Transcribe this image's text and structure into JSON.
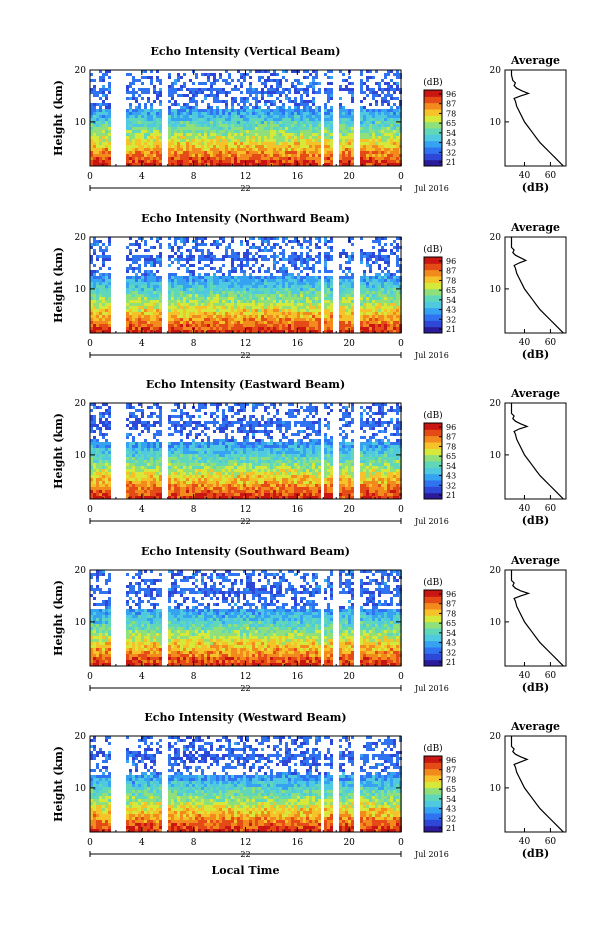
{
  "chart_data": [
    {
      "type": "heatmap",
      "title": "Echo Intensity (Vertical Beam)",
      "ylabel": "Height (km)",
      "xticks": [
        "0",
        "4",
        "8",
        "12",
        "16",
        "20",
        "0"
      ],
      "yticks": [
        "20",
        "10"
      ],
      "date_label": "22",
      "month_label": "Jul 2016",
      "xlim": [
        0,
        24
      ],
      "ylim": [
        1.5,
        20
      ],
      "gaps_hours": [
        [
          1.4,
          2.6
        ],
        [
          5.4,
          5.9
        ],
        [
          17.7,
          18.0
        ],
        [
          18.6,
          19.0
        ],
        [
          20.3,
          20.8
        ]
      ],
      "colorbar": {
        "unit": "(dB)",
        "ticks": [
          "96",
          "87",
          "78",
          "65",
          "54",
          "43",
          "32",
          "21"
        ]
      },
      "profile": {
        "title": "Average",
        "xlabel": "(dB)",
        "xticks": [
          "40",
          "60"
        ],
        "yticks": [
          "20",
          "10"
        ],
        "xlim": [
          25,
          72
        ],
        "height_km": [
          1.5,
          2,
          3,
          4,
          5,
          6,
          7,
          8,
          9,
          10,
          11,
          12,
          13,
          14,
          14.5,
          15,
          15.5,
          16,
          16.5,
          17,
          17.5,
          18,
          19,
          20
        ],
        "db": [
          70,
          68,
          64,
          60,
          56,
          52,
          49,
          46,
          43,
          40,
          38,
          36,
          34,
          33,
          32,
          37,
          43,
          38,
          34,
          32,
          33,
          31,
          30,
          30
        ]
      }
    },
    {
      "type": "heatmap",
      "title": "Echo Intensity (Northward Beam)",
      "ylabel": "Height (km)",
      "xticks": [
        "0",
        "4",
        "8",
        "12",
        "16",
        "20",
        "0"
      ],
      "yticks": [
        "20",
        "10"
      ],
      "date_label": "22",
      "month_label": "Jul 2016",
      "xlim": [
        0,
        24
      ],
      "ylim": [
        1.5,
        20
      ],
      "gaps_hours": [
        [
          1.4,
          2.6
        ],
        [
          5.4,
          5.9
        ],
        [
          17.7,
          18.0
        ],
        [
          18.6,
          19.0
        ],
        [
          20.3,
          20.8
        ]
      ],
      "colorbar": {
        "unit": "(dB)",
        "ticks": [
          "96",
          "87",
          "78",
          "65",
          "54",
          "43",
          "32",
          "21"
        ]
      },
      "profile": {
        "title": "Average",
        "xlabel": "(dB)",
        "xticks": [
          "40",
          "60"
        ],
        "yticks": [
          "20",
          "10"
        ],
        "xlim": [
          25,
          72
        ],
        "height_km": [
          1.5,
          2,
          3,
          4,
          5,
          6,
          7,
          8,
          9,
          10,
          11,
          12,
          13,
          14,
          14.5,
          15,
          15.5,
          16,
          16.5,
          17,
          17.5,
          18,
          19,
          20
        ],
        "db": [
          70,
          68,
          64,
          60,
          56,
          52,
          49,
          46,
          43,
          40,
          38,
          36,
          34,
          33,
          32,
          36,
          41,
          37,
          33,
          31,
          32,
          30,
          30,
          30
        ]
      }
    },
    {
      "type": "heatmap",
      "title": "Echo Intensity (Eastward Beam)",
      "ylabel": "Height (km)",
      "xticks": [
        "0",
        "4",
        "8",
        "12",
        "16",
        "20",
        "0"
      ],
      "yticks": [
        "20",
        "10"
      ],
      "date_label": "22",
      "month_label": "Jul 2016",
      "xlim": [
        0,
        24
      ],
      "ylim": [
        1.5,
        20
      ],
      "gaps_hours": [
        [
          1.4,
          2.6
        ],
        [
          5.4,
          5.9
        ],
        [
          17.7,
          18.0
        ],
        [
          18.6,
          19.0
        ],
        [
          20.3,
          20.8
        ]
      ],
      "colorbar": {
        "unit": "(dB)",
        "ticks": [
          "96",
          "87",
          "78",
          "65",
          "54",
          "43",
          "32",
          "21"
        ]
      },
      "profile": {
        "title": "Average",
        "xlabel": "(dB)",
        "xticks": [
          "40",
          "60"
        ],
        "yticks": [
          "20",
          "10"
        ],
        "xlim": [
          25,
          72
        ],
        "height_km": [
          1.5,
          2,
          3,
          4,
          5,
          6,
          7,
          8,
          9,
          10,
          11,
          12,
          13,
          14,
          14.5,
          15,
          15.5,
          16,
          16.5,
          17,
          17.5,
          18,
          19,
          20
        ],
        "db": [
          70,
          68,
          64,
          60,
          56,
          52,
          49,
          46,
          43,
          40,
          38,
          36,
          34,
          33,
          32,
          36,
          42,
          37,
          33,
          31,
          32,
          30,
          30,
          30
        ]
      }
    },
    {
      "type": "heatmap",
      "title": "Echo Intensity (Southward Beam)",
      "ylabel": "Height (km)",
      "xticks": [
        "0",
        "4",
        "8",
        "12",
        "16",
        "20",
        "0"
      ],
      "yticks": [
        "20",
        "10"
      ],
      "date_label": "22",
      "month_label": "Jul 2016",
      "xlim": [
        0,
        24
      ],
      "ylim": [
        1.5,
        20
      ],
      "gaps_hours": [
        [
          1.4,
          2.6
        ],
        [
          5.4,
          5.9
        ],
        [
          17.7,
          18.0
        ],
        [
          18.6,
          19.0
        ],
        [
          20.3,
          20.8
        ]
      ],
      "colorbar": {
        "unit": "(dB)",
        "ticks": [
          "96",
          "87",
          "78",
          "65",
          "54",
          "43",
          "32",
          "21"
        ]
      },
      "profile": {
        "title": "Average",
        "xlabel": "(dB)",
        "xticks": [
          "40",
          "60"
        ],
        "yticks": [
          "20",
          "10"
        ],
        "xlim": [
          25,
          72
        ],
        "height_km": [
          1.5,
          2,
          3,
          4,
          5,
          6,
          7,
          8,
          9,
          10,
          11,
          12,
          13,
          14,
          14.5,
          15,
          15.5,
          16,
          16.5,
          17,
          17.5,
          18,
          19,
          20
        ],
        "db": [
          70,
          68,
          64,
          60,
          56,
          52,
          49,
          46,
          43,
          40,
          38,
          36,
          34,
          33,
          32,
          37,
          43,
          37,
          33,
          31,
          32,
          30,
          30,
          30
        ]
      }
    },
    {
      "type": "heatmap",
      "title": "Echo Intensity (Westward Beam)",
      "ylabel": "Height (km)",
      "xlabel": "Local Time",
      "xticks": [
        "0",
        "4",
        "8",
        "12",
        "16",
        "20",
        "0"
      ],
      "yticks": [
        "20",
        "10"
      ],
      "date_label": "22",
      "month_label": "Jul 2016",
      "xlim": [
        0,
        24
      ],
      "ylim": [
        1.5,
        20
      ],
      "gaps_hours": [
        [
          1.4,
          2.6
        ],
        [
          5.4,
          5.9
        ],
        [
          17.7,
          18.0
        ],
        [
          18.6,
          19.0
        ],
        [
          20.3,
          20.8
        ]
      ],
      "colorbar": {
        "unit": "(dB)",
        "ticks": [
          "96",
          "87",
          "78",
          "65",
          "54",
          "43",
          "32",
          "21"
        ]
      },
      "profile": {
        "title": "Average",
        "xlabel": "(dB)",
        "xticks": [
          "40",
          "60"
        ],
        "yticks": [
          "20",
          "10"
        ],
        "xlim": [
          25,
          72
        ],
        "height_km": [
          1.5,
          2,
          3,
          4,
          5,
          6,
          7,
          8,
          9,
          10,
          11,
          12,
          13,
          14,
          14.5,
          15,
          15.5,
          16,
          16.5,
          17,
          17.5,
          18,
          19,
          20
        ],
        "db": [
          70,
          68,
          64,
          60,
          56,
          52,
          49,
          46,
          43,
          40,
          38,
          36,
          34,
          33,
          32,
          37,
          42,
          37,
          33,
          31,
          32,
          30,
          30,
          30
        ]
      }
    }
  ],
  "colormap": [
    "#2b1b9a",
    "#2e47d6",
    "#2f73f0",
    "#35a2f2",
    "#4ec9e0",
    "#5fd7b8",
    "#8fe07a",
    "#d6e83a",
    "#f6c22a",
    "#f28a1e",
    "#e54b16",
    "#c91612"
  ]
}
